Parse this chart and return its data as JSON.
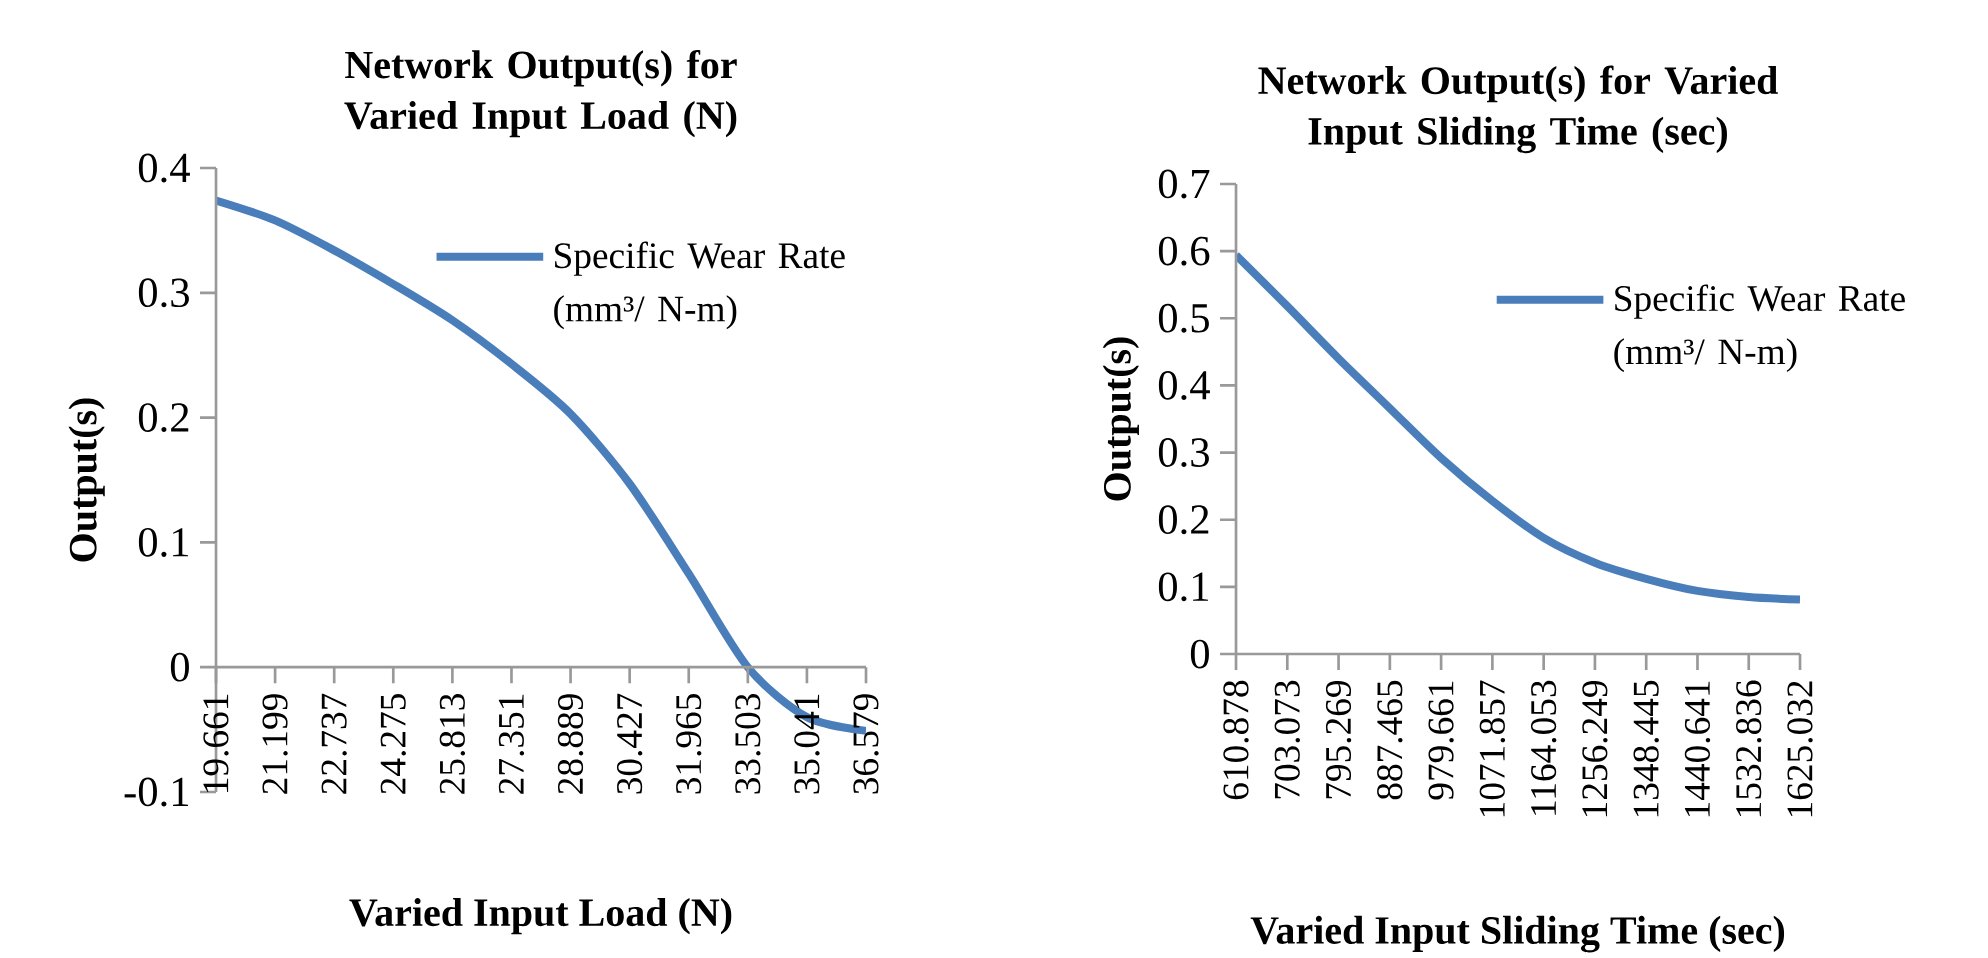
{
  "chart_data": [
    {
      "type": "line",
      "title": "Network Output(s) for Varied Input Load (N)",
      "xlabel": "Varied Input Load (N)",
      "ylabel": "Output(s)",
      "categories": [
        "19.661",
        "21.199",
        "22.737",
        "24.275",
        "25.813",
        "27.351",
        "28.889",
        "30.427",
        "31.965",
        "33.503",
        "35.041",
        "36.579"
      ],
      "series": [
        {
          "name": "Specific Wear Rate (mm³/ N-m)",
          "color": "#4a7ebb",
          "values": [
            0.374,
            0.358,
            0.334,
            0.307,
            0.278,
            0.243,
            0.203,
            0.147,
            0.075,
            0.0,
            -0.04,
            -0.051
          ]
        }
      ],
      "ylim": [
        -0.1,
        0.4
      ],
      "yticks": [
        -0.1,
        0,
        0.1,
        0.2,
        0.3,
        0.4
      ],
      "grid": false,
      "legend": "top right",
      "marker": "none",
      "line_style": "solid"
    },
    {
      "type": "line",
      "title": "Network Output(s) for Varied Input Sliding Time (sec)",
      "xlabel": "Varied Input Sliding Time (sec)",
      "ylabel": "Output(s)",
      "categories": [
        "610.878",
        "703.073",
        "795.269",
        "887.465",
        "979.661",
        "1071.857",
        "1164.053",
        "1256.249",
        "1348.445",
        "1440.641",
        "1532.836",
        "1625.032"
      ],
      "series": [
        {
          "name": "Specific Wear Rate (mm³/ N-m)",
          "color": "#4a7ebb",
          "values": [
            0.594,
            0.518,
            0.44,
            0.366,
            0.292,
            0.228,
            0.173,
            0.136,
            0.112,
            0.094,
            0.085,
            0.081
          ]
        }
      ],
      "ylim": [
        0,
        0.7
      ],
      "yticks": [
        0,
        0.1,
        0.2,
        0.3,
        0.4,
        0.5,
        0.6,
        0.7
      ],
      "grid": false,
      "legend": "right",
      "marker": "none",
      "line_style": "solid"
    }
  ]
}
